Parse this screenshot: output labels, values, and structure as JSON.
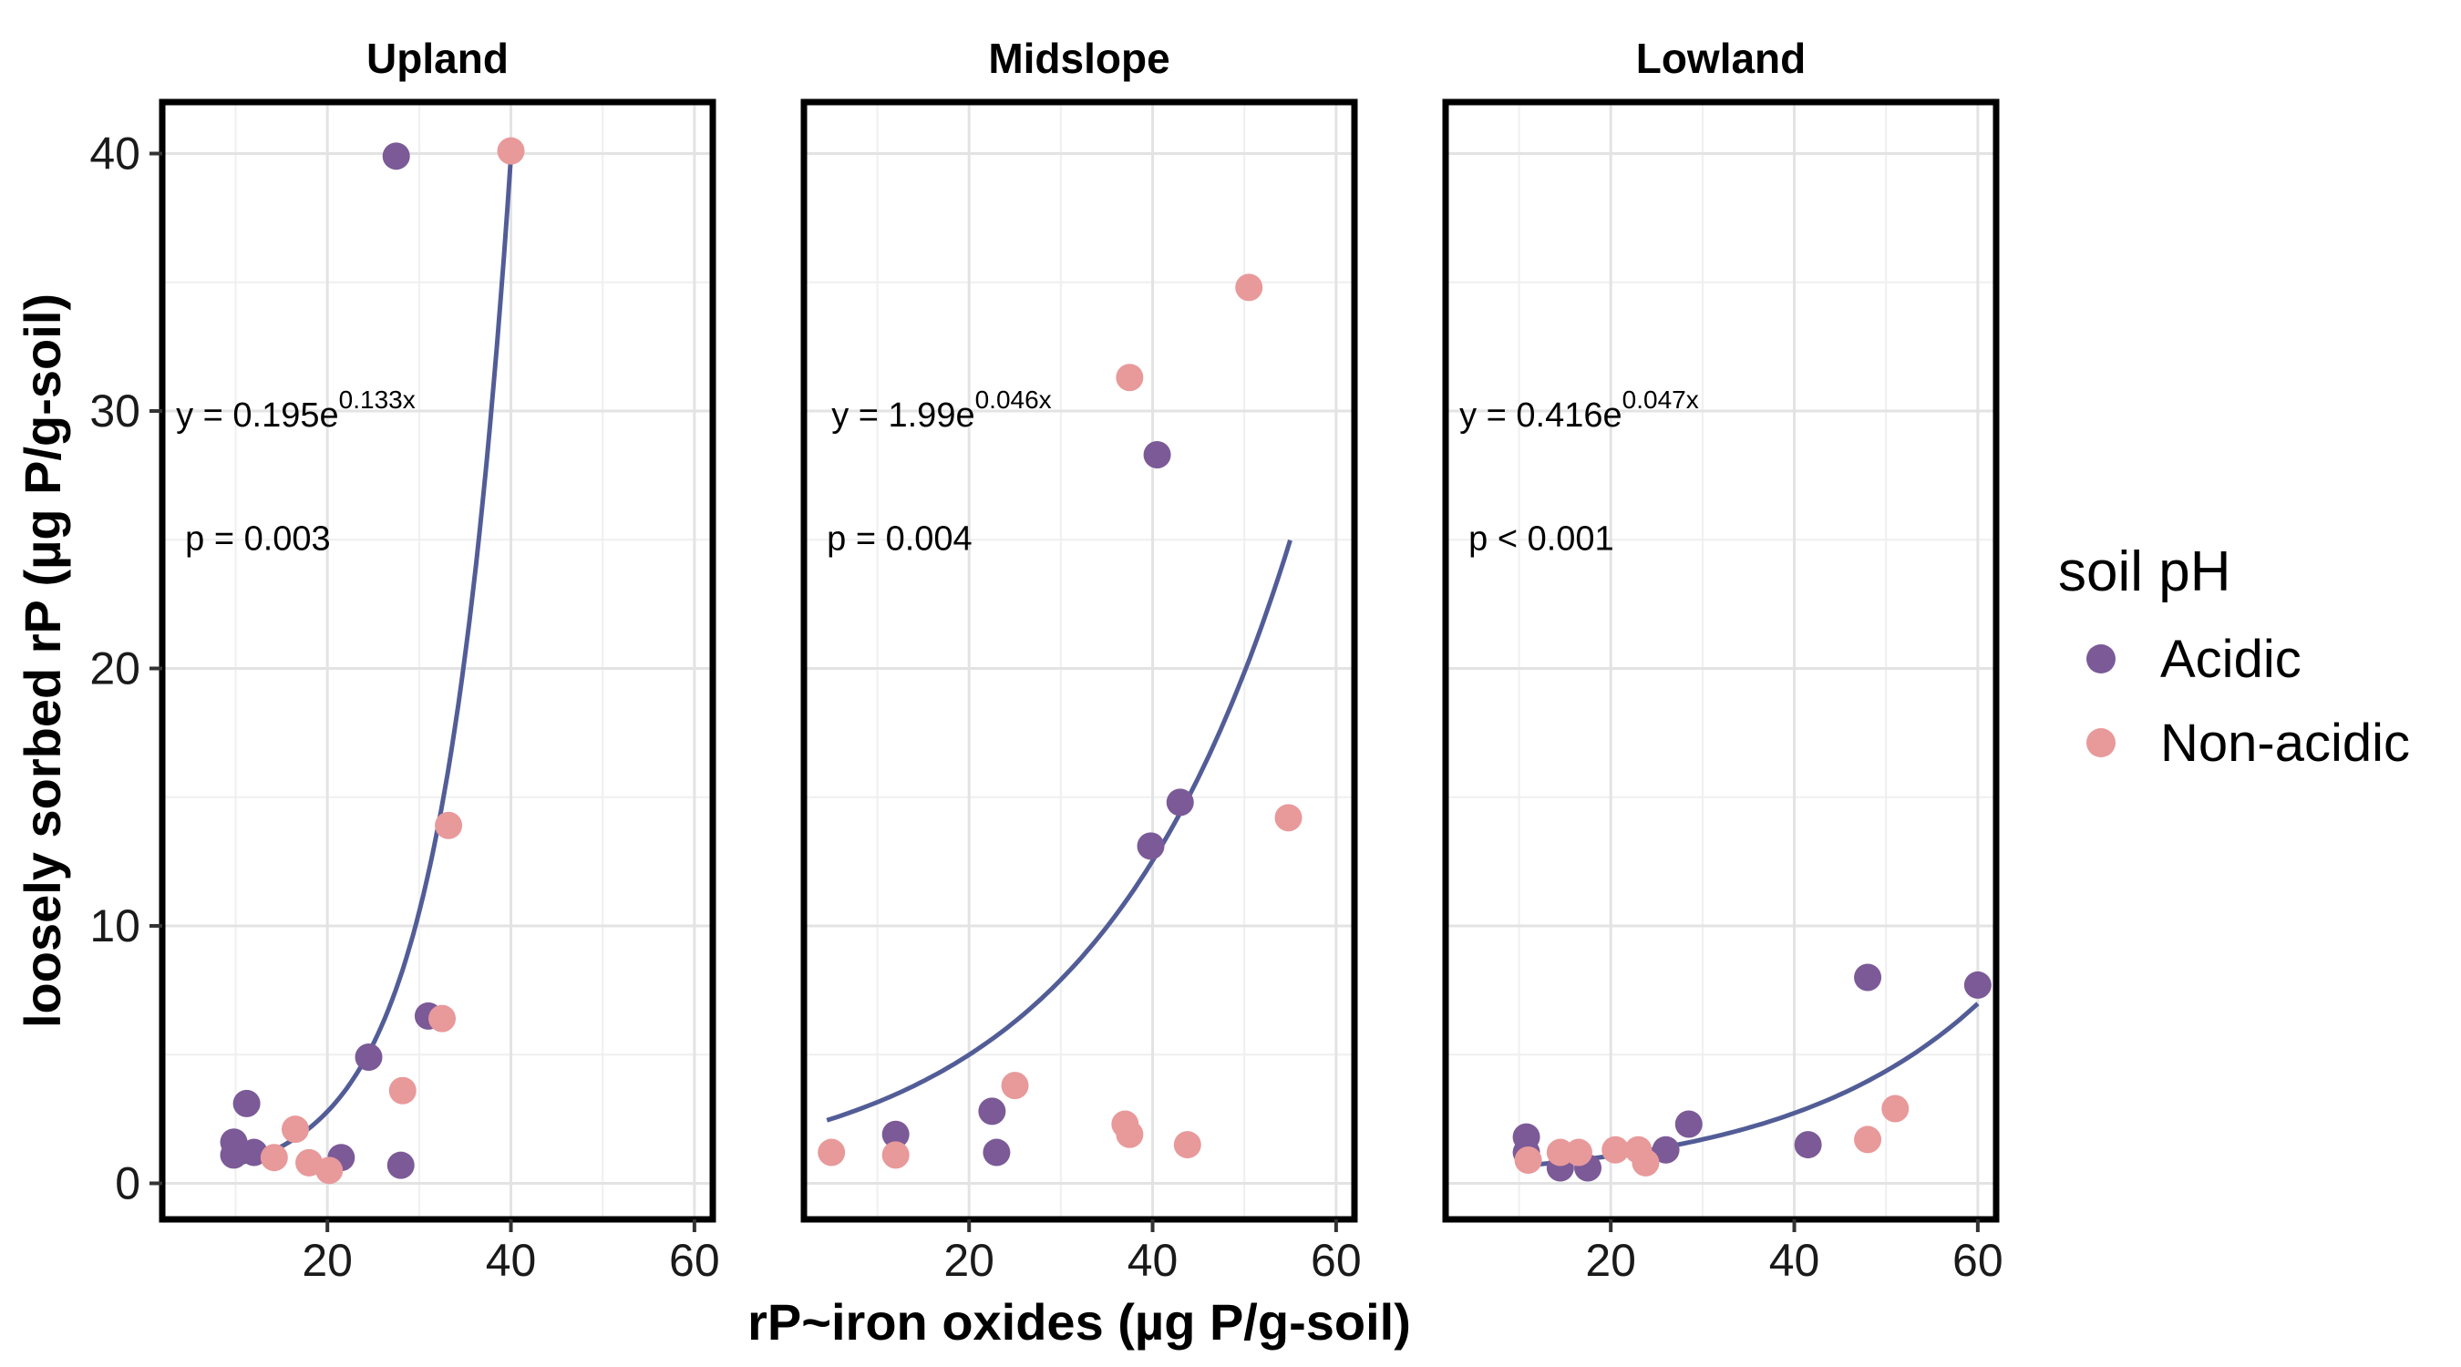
{
  "chart_data": {
    "type": "scatter",
    "xlabel": "rP~iron oxides (µg P/g-soil)",
    "ylabel": "loosely sorbed rP (µg P/g-soil)",
    "xlim": [
      2,
      62
    ],
    "ylim": [
      -1.4,
      42
    ],
    "xticks": [
      20,
      40,
      60
    ],
    "yticks": [
      0,
      10,
      20,
      30,
      40
    ],
    "grid": true,
    "legend": {
      "title": "soil pH",
      "placement": "right",
      "entries": [
        {
          "label": "Acidic",
          "color": "#7b5a97"
        },
        {
          "label": "Non-acidic",
          "color": "#e8999a"
        }
      ]
    },
    "fit_color": "#525d97",
    "panels": [
      {
        "title": "Upland",
        "equation": {
          "prefix": "y = 0.195e",
          "exponent": "0.133x",
          "x": 3.5,
          "y": 29.4
        },
        "pvalue": {
          "text": "p = 0.003",
          "x": 4.5,
          "y": 24.6
        },
        "fit": {
          "a": 0.195,
          "b": 0.133,
          "xmin": 9.5,
          "xmax": 40
        },
        "series": [
          {
            "name": "Acidic",
            "points": [
              [
                27.5,
                39.9
              ],
              [
                9.8,
                1.6
              ],
              [
                11.2,
                3.1
              ],
              [
                9.8,
                1.1
              ],
              [
                12,
                1.2
              ],
              [
                24.5,
                4.9
              ],
              [
                21.5,
                1.0
              ],
              [
                28,
                0.7
              ],
              [
                31,
                6.5
              ]
            ]
          },
          {
            "name": "Non-acidic",
            "points": [
              [
                40,
                40.1
              ],
              [
                33.2,
                13.9
              ],
              [
                32.5,
                6.4
              ],
              [
                28.2,
                3.6
              ],
              [
                16.5,
                2.1
              ],
              [
                18,
                0.8
              ],
              [
                14.2,
                1.0
              ],
              [
                20.2,
                0.5
              ]
            ]
          }
        ]
      },
      {
        "title": "Midslope",
        "equation": {
          "prefix": "y = 1.99e",
          "exponent": "0.046x",
          "x": 5,
          "y": 29.4
        },
        "pvalue": {
          "text": "p = 0.004",
          "x": 4.5,
          "y": 24.6
        },
        "fit": {
          "a": 1.99,
          "b": 0.046,
          "xmin": 4.5,
          "xmax": 55
        },
        "series": [
          {
            "name": "Acidic",
            "points": [
              [
                40.5,
                28.3
              ],
              [
                43,
                14.8
              ],
              [
                39.8,
                13.1
              ],
              [
                12,
                1.9
              ],
              [
                22.5,
                2.8
              ],
              [
                23,
                1.2
              ]
            ]
          },
          {
            "name": "Non-acidic",
            "points": [
              [
                50.5,
                34.8
              ],
              [
                37.5,
                31.3
              ],
              [
                54.8,
                14.2
              ],
              [
                25,
                3.8
              ],
              [
                37,
                2.3
              ],
              [
                37.5,
                1.9
              ],
              [
                43.8,
                1.5
              ],
              [
                5,
                1.2
              ],
              [
                12,
                1.1
              ]
            ]
          }
        ]
      },
      {
        "title": "Lowland",
        "equation": {
          "prefix": "y = 0.416e",
          "exponent": "0.047x",
          "x": 3.5,
          "y": 29.4
        },
        "pvalue": {
          "text": "p < 0.001",
          "x": 4.5,
          "y": 24.6
        },
        "fit": {
          "a": 0.416,
          "b": 0.047,
          "xmin": 10.5,
          "xmax": 60
        },
        "series": [
          {
            "name": "Acidic",
            "points": [
              [
                48,
                8.0
              ],
              [
                60,
                7.7
              ],
              [
                28.5,
                2.3
              ],
              [
                41.5,
                1.5
              ],
              [
                10.8,
                1.8
              ],
              [
                10.8,
                1.2
              ],
              [
                14.5,
                0.6
              ],
              [
                17.5,
                0.6
              ],
              [
                26,
                1.3
              ]
            ]
          },
          {
            "name": "Non-acidic",
            "points": [
              [
                51,
                2.9
              ],
              [
                48,
                1.7
              ],
              [
                11,
                0.9
              ],
              [
                14.5,
                1.2
              ],
              [
                16.5,
                1.2
              ],
              [
                20.5,
                1.3
              ],
              [
                23,
                1.3
              ],
              [
                23.8,
                0.8
              ]
            ]
          }
        ]
      }
    ]
  }
}
